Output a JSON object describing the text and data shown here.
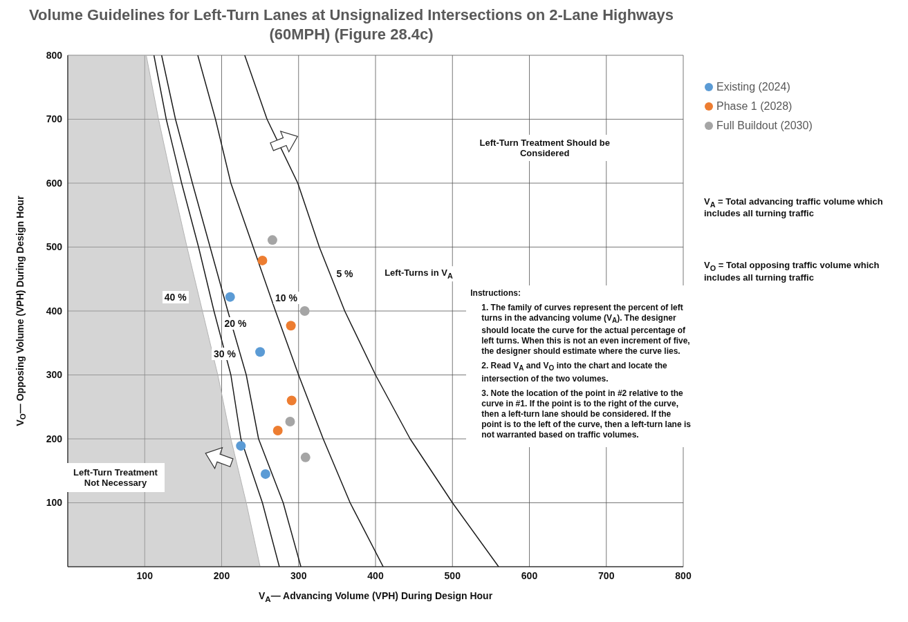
{
  "chart_data": {
    "type": "scatter",
    "title": "Volume Guidelines for Left-Turn Lanes at Unsignalized Intersections on 2-Lane Highways (60MPH) (Figure 28.4c)",
    "xlabel": "V$_{A}$— Advancing Volume (VPH) During Design Hour",
    "ylabel": "V$_{O}$— Opposing Volume (VPH) During Design Hour",
    "xlim": [
      0,
      800
    ],
    "xticks": [
      100,
      200,
      300,
      400,
      500,
      600,
      700,
      800
    ],
    "ylim": [
      0,
      800
    ],
    "yticks": [
      100,
      200,
      300,
      400,
      500,
      600,
      700,
      800
    ],
    "grid": true,
    "legend": "top right",
    "series": [
      {
        "type": "area",
        "color": "#b3b3b3",
        "x": [
          0,
          102,
          118,
          136,
          155,
          175,
          195,
          212,
          232,
          250
        ],
        "values": [
          800,
          800,
          700,
          600,
          500,
          400,
          300,
          200,
          100,
          0
        ]
      },
      {
        "type": "line",
        "color": "#1a1a1a",
        "x": [
          112,
          128,
          148,
          170,
          190,
          212,
          225,
          253,
          275
        ],
        "values": [
          800,
          700,
          600,
          500,
          400,
          300,
          200,
          100,
          0
        ]
      },
      {
        "type": "line",
        "color": "#1a1a1a",
        "x": [
          122,
          140,
          162,
          185,
          208,
          232,
          248,
          280,
          303
        ],
        "values": [
          800,
          700,
          600,
          500,
          400,
          300,
          200,
          100,
          0
        ]
      },
      {
        "type": "line",
        "color": "#1a1a1a",
        "x": [
          169,
          192,
          212,
          241,
          270,
          300,
          332,
          367,
          410
        ],
        "values": [
          800,
          700,
          600,
          500,
          400,
          300,
          200,
          100,
          0
        ]
      },
      {
        "type": "line",
        "color": "#1a1a1a",
        "x": [
          230,
          259,
          299,
          327,
          360,
          400,
          445,
          500,
          560
        ],
        "values": [
          800,
          700,
          600,
          500,
          400,
          300,
          200,
          100,
          0
        ]
      },
      {
        "type": "scatter",
        "name": "Existing (2024)",
        "color": "#5b9bd5",
        "marker": "circle",
        "x": [
          211,
          250,
          225,
          257
        ],
        "values": [
          422,
          336,
          189,
          145
        ]
      },
      {
        "type": "scatter",
        "name": "Phase 1 (2028)",
        "color": "#ed7d31",
        "marker": "circle",
        "x": [
          253,
          290,
          291,
          273
        ],
        "values": [
          479,
          377,
          260,
          213
        ]
      },
      {
        "type": "scatter",
        "name": "Full Buildout (2030)",
        "color": "#a5a5a5",
        "marker": "circle",
        "x": [
          266,
          308,
          289,
          309
        ],
        "values": [
          511,
          400,
          227,
          171
        ]
      }
    ],
    "annotations": [
      {
        "text": "40 %",
        "x": 140,
        "y": 422
      },
      {
        "text": "30 %",
        "x": 204,
        "y": 333
      },
      {
        "text": "20 %",
        "x": 218,
        "y": 381
      },
      {
        "text": "10 %",
        "x": 284,
        "y": 421
      },
      {
        "text": "5 %",
        "x": 360,
        "y": 458
      },
      "Left-Turn Treatment Should be Considered",
      "Left-Turn Treatment Not Necessary",
      "Left-Turns in V$_{A}$",
      "V$_{A}$ = Total advancing traffic volume which includes all turning traffic",
      "V$_{O}$ = Total opposing traffic volume which includes all turning traffic",
      "Instructions:",
      "1. The family of curves represent the percent of left turns in the advancing volume (V$_{A}$). The designer should locate the curve for the actual percentage of left turns. When this is not an even increment of five, the designer should estimate where the curve lies.",
      "2. Read V$_{A}$ and V$_{O}$ into the chart and locate the intersection of the two volumes.",
      "3. Note the location of the point in #2 relative to the curve in #1. If the point is to the right of the curve, then a left-turn lane should be considered. If the point is to the left of the curve, then a left-turn lane is not warranted based on traffic volumes."
    ]
  }
}
